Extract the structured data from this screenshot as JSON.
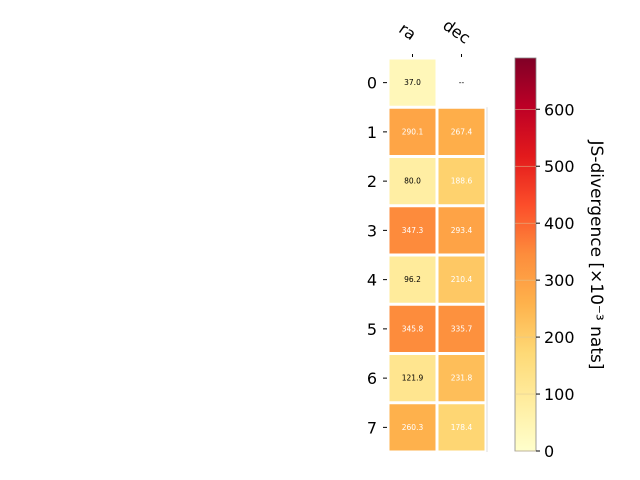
{
  "chart_data": {
    "type": "heatmap",
    "columns": [
      "ra",
      "dec"
    ],
    "rows": [
      "0",
      "1",
      "2",
      "3",
      "4",
      "5",
      "6",
      "7"
    ],
    "values": [
      [
        37.0,
        null
      ],
      [
        290.1,
        267.4
      ],
      [
        80.0,
        188.6
      ],
      [
        347.3,
        293.4
      ],
      [
        96.2,
        210.4
      ],
      [
        345.8,
        335.7
      ],
      [
        121.9,
        231.8
      ],
      [
        260.3,
        178.4
      ]
    ],
    "cell_labels": [
      [
        "37.0",
        "--"
      ],
      [
        "290.1",
        "267.4"
      ],
      [
        "80.0",
        "188.6"
      ],
      [
        "347.3",
        "293.4"
      ],
      [
        "96.2",
        "210.4"
      ],
      [
        "345.8",
        "335.7"
      ],
      [
        "121.9",
        "231.8"
      ],
      [
        "260.3",
        "178.4"
      ]
    ],
    "colorbar": {
      "label": "JS-divergence [×10⁻³ nats]",
      "range": [
        0,
        690
      ],
      "ticks": [
        0,
        100,
        200,
        300,
        400,
        500,
        600
      ],
      "tick_labels": [
        "0",
        "100",
        "200",
        "300",
        "400",
        "500",
        "600"
      ],
      "colormap": "YlOrRd"
    },
    "grid": false,
    "legend": "colorbar-right"
  }
}
